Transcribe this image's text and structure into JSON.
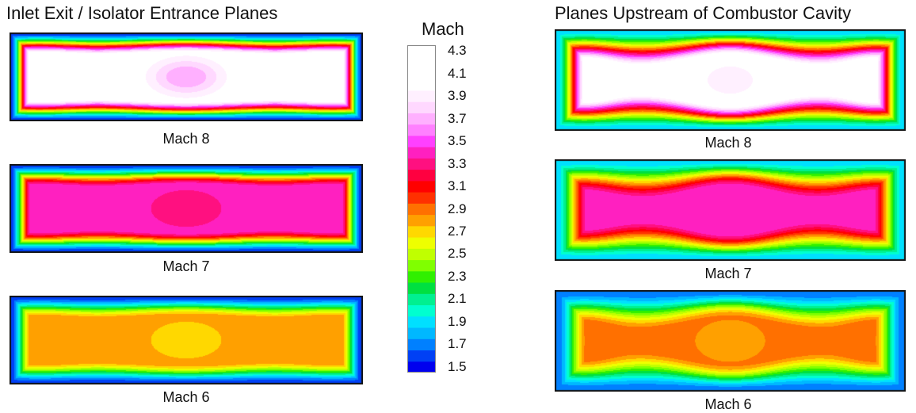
{
  "panels": {
    "left_title": "Inlet Exit / Isolator Entrance Planes",
    "right_title": "Planes Upstream of Combustor Cavity",
    "captions": [
      "Mach 8",
      "Mach 7",
      "Mach 6"
    ]
  },
  "colorbar": {
    "title": "Mach",
    "min": 1.5,
    "max": 4.4,
    "step": 0.1,
    "tick_labels": [
      "4.3",
      "4.1",
      "3.9",
      "3.7",
      "3.5",
      "3.3",
      "3.1",
      "2.9",
      "2.7",
      "2.5",
      "2.3",
      "2.1",
      "1.9",
      "1.7",
      "1.5"
    ],
    "colors": [
      "#0000ee",
      "#0040f5",
      "#0080ff",
      "#00b8ff",
      "#00e0ff",
      "#00ffd0",
      "#00f090",
      "#00e040",
      "#30f000",
      "#80ff00",
      "#c0ff00",
      "#eeff00",
      "#ffd800",
      "#ffa000",
      "#ff7000",
      "#ff3000",
      "#ff0000",
      "#ff0040",
      "#ff1080",
      "#ff20c0",
      "#ff40ff",
      "#ff80ff",
      "#ffb0ff",
      "#ffd8ff",
      "#fff0ff",
      "#ffffff",
      "#ffffff",
      "#ffffff",
      "#ffffff"
    ]
  },
  "chart_data": {
    "type": "heatmap",
    "value_label": "Mach",
    "colorbar_range": [
      1.5,
      4.4
    ],
    "panels": [
      {
        "group": "Inlet Exit / Isolator Entrance Planes",
        "caption": "Mach 8",
        "edge": 1.6,
        "core": 4.2,
        "center_dip": 3.7,
        "side_dip": 3.9
      },
      {
        "group": "Inlet Exit / Isolator Entrance Planes",
        "caption": "Mach 7",
        "edge": 1.6,
        "core": 3.5,
        "center_dip": 3.3,
        "side_dip": 3.4
      },
      {
        "group": "Inlet Exit / Isolator Entrance Planes",
        "caption": "Mach 6",
        "edge": 1.6,
        "core": 2.9,
        "center_dip": 2.7,
        "side_dip": 2.8
      },
      {
        "group": "Planes Upstream of Combustor Cavity",
        "caption": "Mach 8",
        "edge": 1.9,
        "core": 4.3,
        "center_dip": 3.9,
        "side_dip": 4.1
      },
      {
        "group": "Planes Upstream of Combustor Cavity",
        "caption": "Mach 7",
        "edge": 1.9,
        "core": 3.5,
        "center_dip": 3.4,
        "side_dip": 3.5
      },
      {
        "group": "Planes Upstream of Combustor Cavity",
        "caption": "Mach 6",
        "edge": 1.7,
        "core": 3.0,
        "center_dip": 2.8,
        "side_dip": 2.9
      }
    ]
  }
}
